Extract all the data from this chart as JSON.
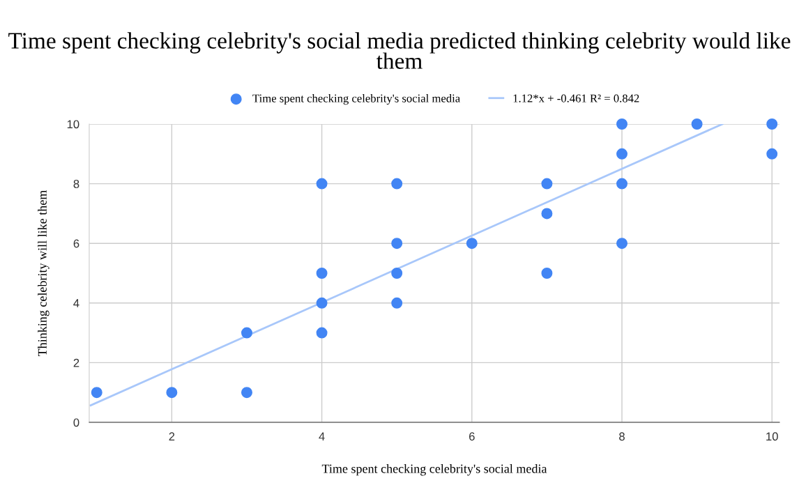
{
  "chart_data": {
    "type": "scatter",
    "title": "Time spent checking celebrity's social media predicted thinking celebrity would like them",
    "xlabel": "Time spent checking celebrity's social media",
    "ylabel": "Thinking celebrity will like them",
    "series": [
      {
        "name": "Time spent checking celebrity's social media",
        "color": "#4285f4",
        "x": [
          1,
          2,
          3,
          3,
          4,
          4,
          4,
          4,
          5,
          5,
          5,
          5,
          6,
          7,
          7,
          7,
          8,
          8,
          8,
          8,
          9,
          10,
          10
        ],
        "values": [
          1,
          1,
          1,
          3,
          3,
          4,
          5,
          8,
          4,
          5,
          6,
          8,
          6,
          5,
          7,
          8,
          6,
          8,
          9,
          10,
          10,
          10,
          9
        ]
      },
      {
        "name": "1.12*x + -0.461 R² = 0.842",
        "type": "line",
        "marker": "none",
        "color": "#a8c7fa",
        "x": [
          0.92,
          9.34
        ],
        "values": [
          0.57,
          10
        ]
      }
    ],
    "xlim": [
      0.9,
      10.1
    ],
    "xticks": [
      2,
      4,
      6,
      8,
      10
    ],
    "ylim": [
      0,
      10
    ],
    "yticks": [
      0,
      2,
      4,
      6,
      8,
      10
    ],
    "grid": true,
    "legend": "top",
    "marker": "circle"
  }
}
